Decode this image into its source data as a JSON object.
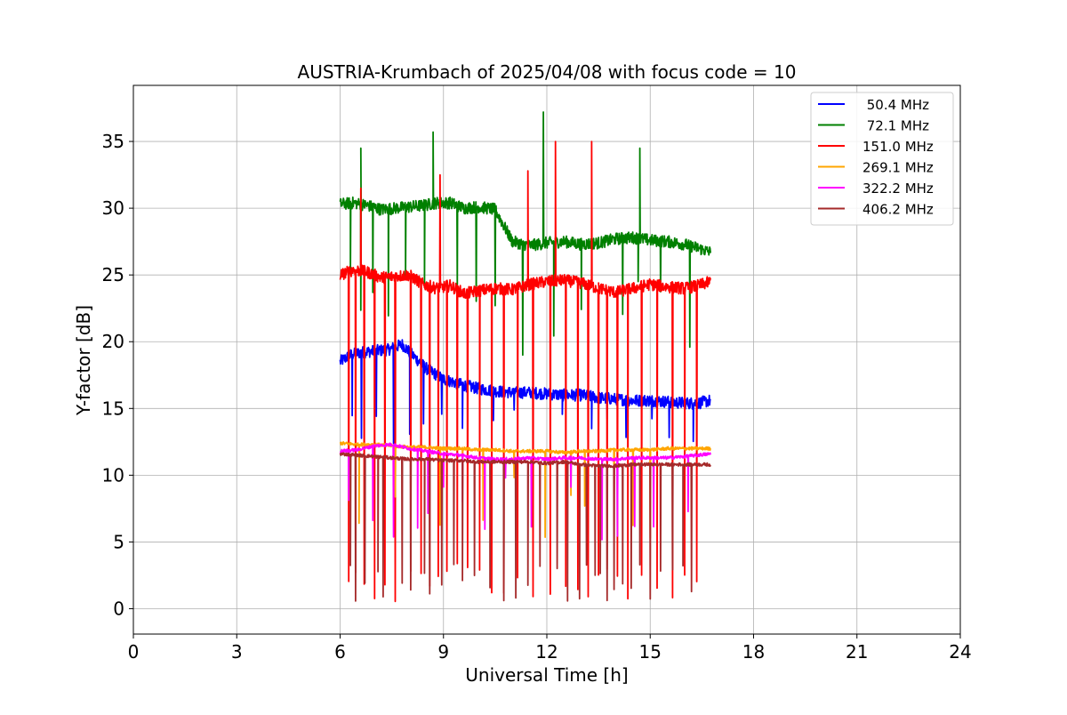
{
  "chart_data": {
    "type": "line",
    "title": "AUSTRIA-Krumbach of 2025/04/08 with focus code = 10",
    "xlabel": "Universal Time [h]",
    "ylabel": "Y-factor [dB]",
    "xlim": [
      0,
      24
    ],
    "ylim": [
      -1.9,
      39.2
    ],
    "xticks": [
      0,
      3,
      6,
      9,
      12,
      15,
      18,
      21,
      24
    ],
    "yticks": [
      0,
      5,
      10,
      15,
      20,
      25,
      30,
      35
    ],
    "grid": true,
    "legend_position": "top-right",
    "series": [
      {
        "name": " 50.4 MHz",
        "color": "#0000ff",
        "x": [
          6.0,
          6.3,
          6.6,
          7.0,
          7.4,
          7.8,
          8.1,
          8.5,
          9.0,
          9.5,
          10.0,
          10.5,
          11.0,
          11.5,
          12.0,
          12.5,
          13.0,
          13.5,
          14.0,
          14.5,
          15.0,
          15.5,
          16.0,
          16.4,
          16.75
        ],
        "values": [
          18.5,
          19.0,
          19.2,
          19.3,
          19.4,
          19.8,
          19.0,
          18.0,
          17.2,
          16.8,
          16.5,
          16.3,
          16.2,
          16.2,
          16.1,
          16.0,
          16.0,
          15.8,
          15.7,
          15.6,
          15.6,
          15.5,
          15.4,
          15.4,
          15.6
        ],
        "dips": [
          6.35,
          6.62,
          7.05,
          7.55,
          8.02,
          8.42,
          8.95,
          9.55,
          10.45,
          11.05,
          12.45,
          13.3,
          13.75,
          14.3,
          15.05,
          15.55,
          16.25
        ]
      },
      {
        "name": " 72.1 MHz",
        "color": "#008000",
        "x": [
          6.0,
          6.4,
          6.8,
          7.2,
          7.6,
          8.0,
          8.4,
          8.8,
          9.2,
          9.6,
          10.0,
          10.5,
          11.0,
          11.5,
          12.0,
          12.5,
          13.0,
          13.5,
          14.0,
          14.5,
          15.0,
          15.5,
          16.0,
          16.4,
          16.75
        ],
        "values": [
          30.3,
          30.4,
          30.2,
          29.9,
          30.0,
          30.1,
          30.2,
          30.4,
          30.4,
          30.0,
          30.1,
          29.9,
          27.5,
          27.2,
          27.4,
          27.5,
          27.3,
          27.4,
          27.7,
          27.8,
          27.6,
          27.5,
          27.3,
          27.0,
          26.7
        ],
        "spikes": [
          [
            6.6,
            34.5
          ],
          [
            8.7,
            35.7
          ],
          [
            11.9,
            37.2
          ],
          [
            14.7,
            34.5
          ]
        ],
        "dips": [
          6.3,
          6.6,
          6.95,
          7.4,
          7.9,
          8.45,
          9.4,
          9.95,
          10.5,
          11.3,
          12.2,
          13.0,
          14.2,
          14.65,
          15.3,
          16.15
        ]
      },
      {
        "name": "151.0 MHz",
        "color": "#ff0000",
        "x": [
          6.0,
          6.4,
          6.8,
          7.2,
          7.6,
          8.0,
          8.4,
          8.8,
          9.2,
          9.6,
          10.0,
          10.5,
          11.0,
          11.5,
          12.0,
          12.5,
          13.0,
          13.5,
          14.0,
          14.5,
          15.0,
          15.5,
          16.0,
          16.4,
          16.75
        ],
        "values": [
          25.0,
          25.4,
          25.2,
          24.8,
          24.9,
          25.0,
          24.3,
          24.0,
          24.2,
          23.6,
          23.8,
          24.0,
          23.9,
          24.3,
          24.5,
          24.6,
          24.4,
          24.0,
          23.7,
          24.0,
          24.3,
          24.1,
          24.0,
          24.2,
          24.5
        ],
        "spikes": [
          [
            6.6,
            31.5
          ],
          [
            8.9,
            32.5
          ],
          [
            11.45,
            32.8
          ],
          [
            12.25,
            35.0
          ],
          [
            13.3,
            35.0
          ]
        ],
        "dips": [
          6.25,
          6.45,
          6.7,
          7.0,
          7.3,
          7.6,
          8.05,
          8.35,
          8.6,
          8.85,
          9.1,
          9.4,
          9.7,
          10.05,
          10.4,
          10.75,
          11.15,
          11.6,
          12.1,
          12.55,
          12.9,
          13.2,
          13.5,
          13.75,
          14.05,
          14.35,
          14.75,
          15.2,
          15.65,
          16.0,
          16.35
        ]
      },
      {
        "name": "269.1 MHz",
        "color": "#ffa500",
        "x": [
          6.0,
          6.5,
          7.0,
          7.5,
          8.0,
          8.5,
          9.0,
          9.5,
          10.0,
          10.5,
          11.0,
          11.5,
          12.0,
          12.5,
          13.0,
          13.5,
          14.0,
          14.5,
          15.0,
          15.5,
          16.0,
          16.75
        ],
        "values": [
          12.4,
          12.3,
          12.3,
          12.2,
          12.1,
          12.1,
          12.0,
          12.0,
          11.9,
          11.9,
          11.8,
          11.8,
          11.8,
          11.7,
          11.8,
          11.8,
          11.9,
          11.9,
          11.9,
          12.0,
          12.0,
          12.0
        ],
        "dips": [
          6.55,
          7.6,
          8.9,
          9.55,
          10.15,
          11.05,
          11.95,
          12.7,
          13.1,
          13.95,
          14.5,
          15.0
        ]
      },
      {
        "name": "322.2 MHz",
        "color": "#ff00ff",
        "x": [
          6.0,
          6.5,
          7.0,
          7.5,
          8.0,
          8.5,
          9.0,
          9.5,
          10.0,
          10.5,
          11.0,
          11.5,
          12.0,
          12.5,
          13.0,
          13.5,
          14.0,
          14.5,
          15.0,
          15.5,
          16.0,
          16.75
        ],
        "values": [
          11.8,
          11.9,
          12.2,
          12.3,
          12.0,
          11.8,
          11.6,
          11.5,
          11.3,
          11.2,
          11.2,
          11.3,
          11.2,
          11.3,
          11.3,
          11.2,
          11.2,
          11.3,
          11.3,
          11.3,
          11.4,
          11.6
        ],
        "dips": [
          6.25,
          6.95,
          7.55,
          8.25,
          8.55,
          9.0,
          9.55,
          10.2,
          10.8,
          11.55,
          12.7,
          13.6,
          14.05,
          14.55,
          15.1,
          16.1
        ]
      },
      {
        "name": "406.2 MHz",
        "color": "#a52a2a",
        "x": [
          6.0,
          6.5,
          7.0,
          7.5,
          8.0,
          8.5,
          9.0,
          9.5,
          10.0,
          10.5,
          11.0,
          11.5,
          12.0,
          12.5,
          13.0,
          13.5,
          14.0,
          14.5,
          15.0,
          15.5,
          16.0,
          16.75
        ],
        "values": [
          11.6,
          11.5,
          11.4,
          11.3,
          11.2,
          11.2,
          11.1,
          11.1,
          11.0,
          11.0,
          11.0,
          11.0,
          10.9,
          11.0,
          10.8,
          10.7,
          10.7,
          10.8,
          10.8,
          10.8,
          10.8,
          10.8
        ],
        "dips": [
          6.3,
          6.45,
          6.72,
          7.1,
          7.25,
          7.8,
          8.05,
          8.45,
          8.6,
          8.95,
          9.3,
          9.55,
          9.9,
          10.35,
          10.75,
          11.1,
          11.45,
          11.8,
          12.3,
          12.6,
          12.95,
          13.15,
          13.4,
          13.55,
          13.75,
          13.95,
          14.2,
          14.45,
          14.7,
          15.0,
          15.3,
          15.65,
          15.95,
          16.2
        ]
      }
    ]
  }
}
